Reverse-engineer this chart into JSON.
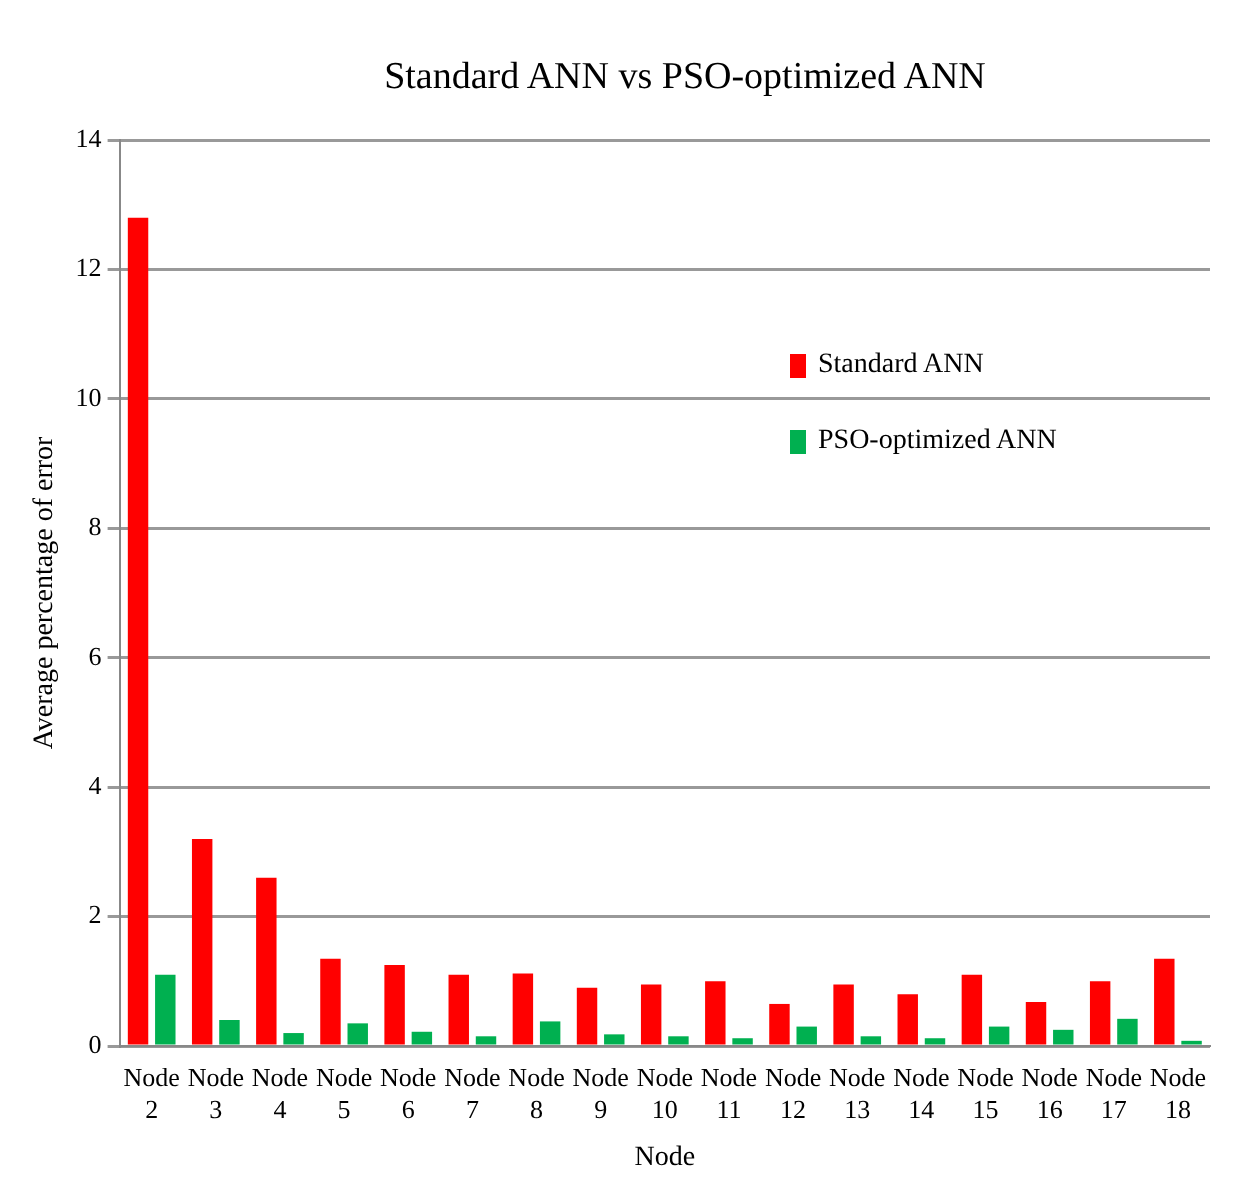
{
  "chart_data": {
    "type": "bar",
    "title": "Standard ANN vs PSO-optimized ANN",
    "xlabel": "Node",
    "ylabel": "Average percentage of error",
    "categories": [
      "Node 2",
      "Node 3",
      "Node 4",
      "Node 5",
      "Node 6",
      "Node 7",
      "Node 8",
      "Node 9",
      "Node 10",
      "Node 11",
      "Node 12",
      "Node 13",
      "Node 14",
      "Node 15",
      "Node 16",
      "Node 17",
      "Node 18"
    ],
    "series": [
      {
        "name": "Standard ANN",
        "color": "#ff0000",
        "values": [
          12.8,
          3.2,
          2.6,
          1.35,
          1.25,
          1.1,
          1.12,
          0.9,
          0.95,
          1.0,
          0.65,
          0.95,
          0.8,
          1.1,
          0.68,
          1.0,
          1.35
        ]
      },
      {
        "name": "PSO-optimized ANN",
        "color": "#00b050",
        "values": [
          1.1,
          0.4,
          0.2,
          0.35,
          0.22,
          0.15,
          0.38,
          0.18,
          0.15,
          0.12,
          0.3,
          0.15,
          0.12,
          0.3,
          0.25,
          0.42,
          0.08
        ]
      }
    ],
    "ylim": [
      0,
      14
    ],
    "yticks": [
      0,
      2,
      4,
      6,
      8,
      10,
      12,
      14
    ],
    "grid": "y",
    "legend": "right"
  }
}
